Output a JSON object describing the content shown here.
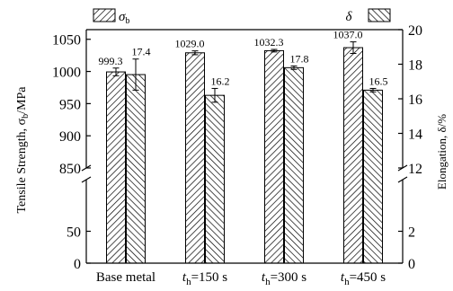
{
  "chart_data": {
    "type": "bar",
    "categories": [
      {
        "main": "Base metal",
        "italic": "",
        "sub": "",
        "rest": ""
      },
      {
        "main": "",
        "italic": "t",
        "sub": "h",
        "rest": "=150 s"
      },
      {
        "main": "",
        "italic": "t",
        "sub": "h",
        "rest": "=300 s"
      },
      {
        "main": "",
        "italic": "t",
        "sub": "h",
        "rest": "=450 s"
      }
    ],
    "series": [
      {
        "name_main": "σ",
        "name_sub": "b",
        "axis": "left",
        "values": [
          999.3,
          1029.0,
          1032.3,
          1037.0
        ],
        "errors": [
          6,
          3,
          2,
          9
        ],
        "labels": [
          "999.3",
          "1029.0",
          "1032.3",
          "1037.0"
        ]
      },
      {
        "name_main": "δ",
        "name_sub": "",
        "axis": "right",
        "values": [
          17.4,
          16.2,
          17.8,
          16.5
        ],
        "errors": [
          0.9,
          0.4,
          0.1,
          0.1
        ],
        "labels": [
          "17.4",
          "16.2",
          "17.8",
          "16.5"
        ]
      }
    ],
    "left_axis": {
      "label_main": "Tensile Strength, σ",
      "label_sub": "b",
      "label_unit": "/MPa",
      "break_at": 850,
      "lower_range": [
        0,
        100
      ],
      "upper_range": [
        850,
        1065
      ],
      "lower_ticks": [
        0,
        50
      ],
      "upper_ticks": [
        850,
        900,
        950,
        1000,
        1050
      ]
    },
    "right_axis": {
      "label": "Elongation, δ/%",
      "break_at": 12,
      "lower_range": [
        0,
        4
      ],
      "upper_range": [
        12,
        20
      ],
      "lower_ticks": [
        0,
        2
      ],
      "upper_ticks": [
        12,
        14,
        16,
        18,
        20
      ]
    },
    "legend_position": "top",
    "grid": false
  }
}
